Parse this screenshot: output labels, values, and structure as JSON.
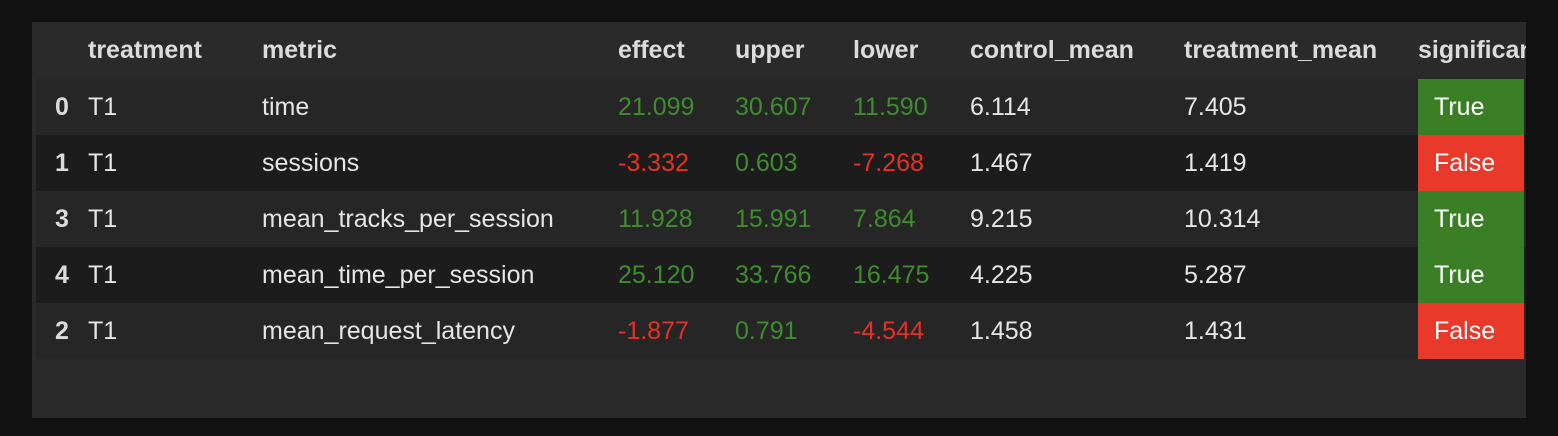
{
  "table": {
    "columns": [
      "",
      "treatment",
      "metric",
      "effect",
      "upper",
      "lower",
      "control_mean",
      "treatment_mean",
      "significant"
    ],
    "rows": [
      {
        "index": "0",
        "treatment": "T1",
        "metric": "time",
        "effect": "21.099",
        "upper": "30.607",
        "lower": "11.590",
        "control_mean": "6.114",
        "treatment_mean": "7.405",
        "significant": "True"
      },
      {
        "index": "1",
        "treatment": "T1",
        "metric": "sessions",
        "effect": "-3.332",
        "upper": "0.603",
        "lower": "-7.268",
        "control_mean": "1.467",
        "treatment_mean": "1.419",
        "significant": "False"
      },
      {
        "index": "3",
        "treatment": "T1",
        "metric": "mean_tracks_per_session",
        "effect": "11.928",
        "upper": "15.991",
        "lower": "7.864",
        "control_mean": "9.215",
        "treatment_mean": "10.314",
        "significant": "True"
      },
      {
        "index": "4",
        "treatment": "T1",
        "metric": "mean_time_per_session",
        "effect": "25.120",
        "upper": "33.766",
        "lower": "16.475",
        "control_mean": "4.225",
        "treatment_mean": "5.287",
        "significant": "True"
      },
      {
        "index": "2",
        "treatment": "T1",
        "metric": "mean_request_latency",
        "effect": "-1.877",
        "upper": "0.791",
        "lower": "-4.544",
        "control_mean": "1.458",
        "treatment_mean": "1.431",
        "significant": "False"
      }
    ]
  },
  "colors": {
    "positive": "#3f8c2f",
    "negative": "#e63025",
    "significant_true_bg": "#3a7f25",
    "significant_false_bg": "#e8392a"
  }
}
